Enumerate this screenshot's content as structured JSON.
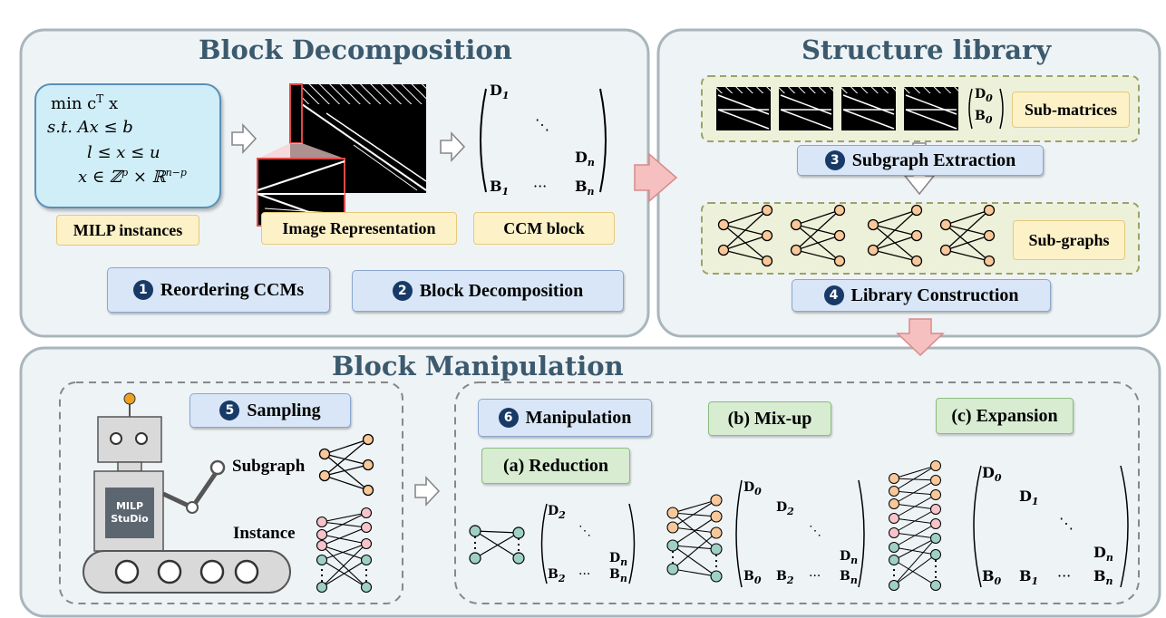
{
  "panels": {
    "block_decomposition": "Block Decomposition",
    "structure_library": "Structure library",
    "block_manipulation": "Block Manipulation"
  },
  "milp": {
    "line1": "min c",
    "line1_sup": "T",
    "line1_end": "x",
    "line2": "s.t. Ax ≤ b",
    "line3": "l ≤ x ≤ u",
    "line4": "x ∈ ℤ",
    "line4_sup1": "p",
    "line4_mid": " × ℝ",
    "line4_sup2": "n−p"
  },
  "labels": {
    "milp_instances": "MILP instances",
    "image_representation": "Image Representation",
    "ccm_block": "CCM block",
    "sub_matrices": "Sub-matrices",
    "sub_graphs": "Sub-graphs",
    "subgraph": "Subgraph",
    "instance": "Instance",
    "studio_line1": "MILP",
    "studio_line2": "StuDio"
  },
  "steps": [
    {
      "num": "1",
      "label": "Reordering CCMs"
    },
    {
      "num": "2",
      "label": "Block Decomposition"
    },
    {
      "num": "3",
      "label": "Subgraph Extraction"
    },
    {
      "num": "4",
      "label": "Library Construction"
    },
    {
      "num": "5",
      "label": "Sampling"
    },
    {
      "num": "6",
      "label": "Manipulation"
    }
  ],
  "ops": {
    "reduction": "(a) Reduction",
    "mixup": "(b) Mix-up",
    "expansion": "(c) Expansion"
  },
  "matrix": {
    "D": "D",
    "B": "B",
    "s0": "0",
    "s1": "1",
    "s2": "2",
    "sn": "n",
    "hdots": "···",
    "ddots": "⋱"
  },
  "colors": {
    "panel_fill": "#eef3f6",
    "panel_border": "#a9b6bc",
    "node_orange": "#f8c89a",
    "node_pink": "#f6c4c9",
    "node_teal": "#9fd0c4",
    "arrow_pink": "#f6c0c0"
  }
}
